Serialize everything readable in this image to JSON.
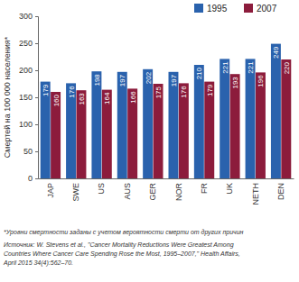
{
  "chart_data": {
    "type": "bar",
    "y_label": "Смертей на 100 000 населения*",
    "categories": [
      "JAP",
      "SWE",
      "US",
      "AUS",
      "GER",
      "NOR",
      "FR",
      "UK",
      "NETH",
      "DEN"
    ],
    "series": [
      {
        "name": "1995",
        "color": "#2a62ad",
        "values": [
          179,
          176,
          198,
          197,
          202,
          197,
          210,
          221,
          221,
          249
        ]
      },
      {
        "name": "2007",
        "color": "#8c1c3c",
        "values": [
          160,
          163,
          164,
          166,
          175,
          176,
          179,
          193,
          196,
          220
        ]
      }
    ],
    "ylim": [
      0,
      300
    ],
    "yticks": [
      0,
      50,
      100,
      150,
      200,
      250,
      300
    ],
    "grid": false,
    "legend": "top-right",
    "data_labels": true,
    "annotations": [
      "*Уровни смертности заданы с учетом вероятности смерти от других причин",
      "Источник: W. Stevens et al., \"Cancer Mortality Reductions Were Greatest Among",
      "Countries Where Cancer Care Spending Rose the Most, 1995–2007,\" Health Affairs,",
      "April 2015 34(4):562–70."
    ]
  }
}
